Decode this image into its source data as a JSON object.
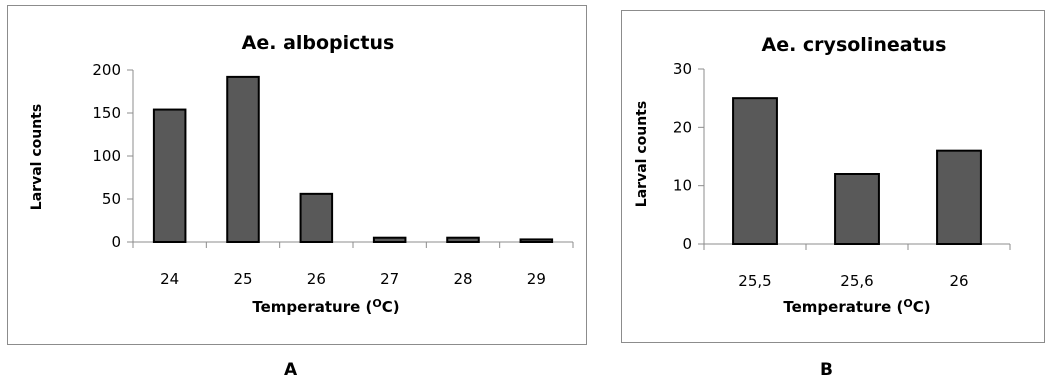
{
  "chart_data": [
    {
      "type": "bar",
      "panel_label": "A",
      "title": "Ae. albopictus",
      "xlabel_main": "Temperature (",
      "xlabel_sup": "O",
      "xlabel_end": "C)",
      "ylabel": "Larval counts",
      "categories": [
        "24",
        "25",
        "26",
        "27",
        "28",
        "29"
      ],
      "values": [
        154,
        192,
        56,
        5,
        5,
        3
      ],
      "yticks": [
        "0",
        "50",
        "100",
        "150",
        "200"
      ],
      "ylim": [
        0,
        200
      ],
      "bar_color": "#595959",
      "grid": false,
      "legend": "none"
    },
    {
      "type": "bar",
      "panel_label": "B",
      "title": "Ae. crysolineatus",
      "xlabel_main": "Temperature (",
      "xlabel_sup": "O",
      "xlabel_end": "C)",
      "ylabel": "Larval counts",
      "categories": [
        "25,5",
        "25,6",
        "26"
      ],
      "values": [
        25,
        12,
        16
      ],
      "yticks": [
        "0",
        "10",
        "20",
        "30"
      ],
      "ylim": [
        0,
        30
      ],
      "bar_color": "#595959",
      "grid": false,
      "legend": "none"
    }
  ]
}
